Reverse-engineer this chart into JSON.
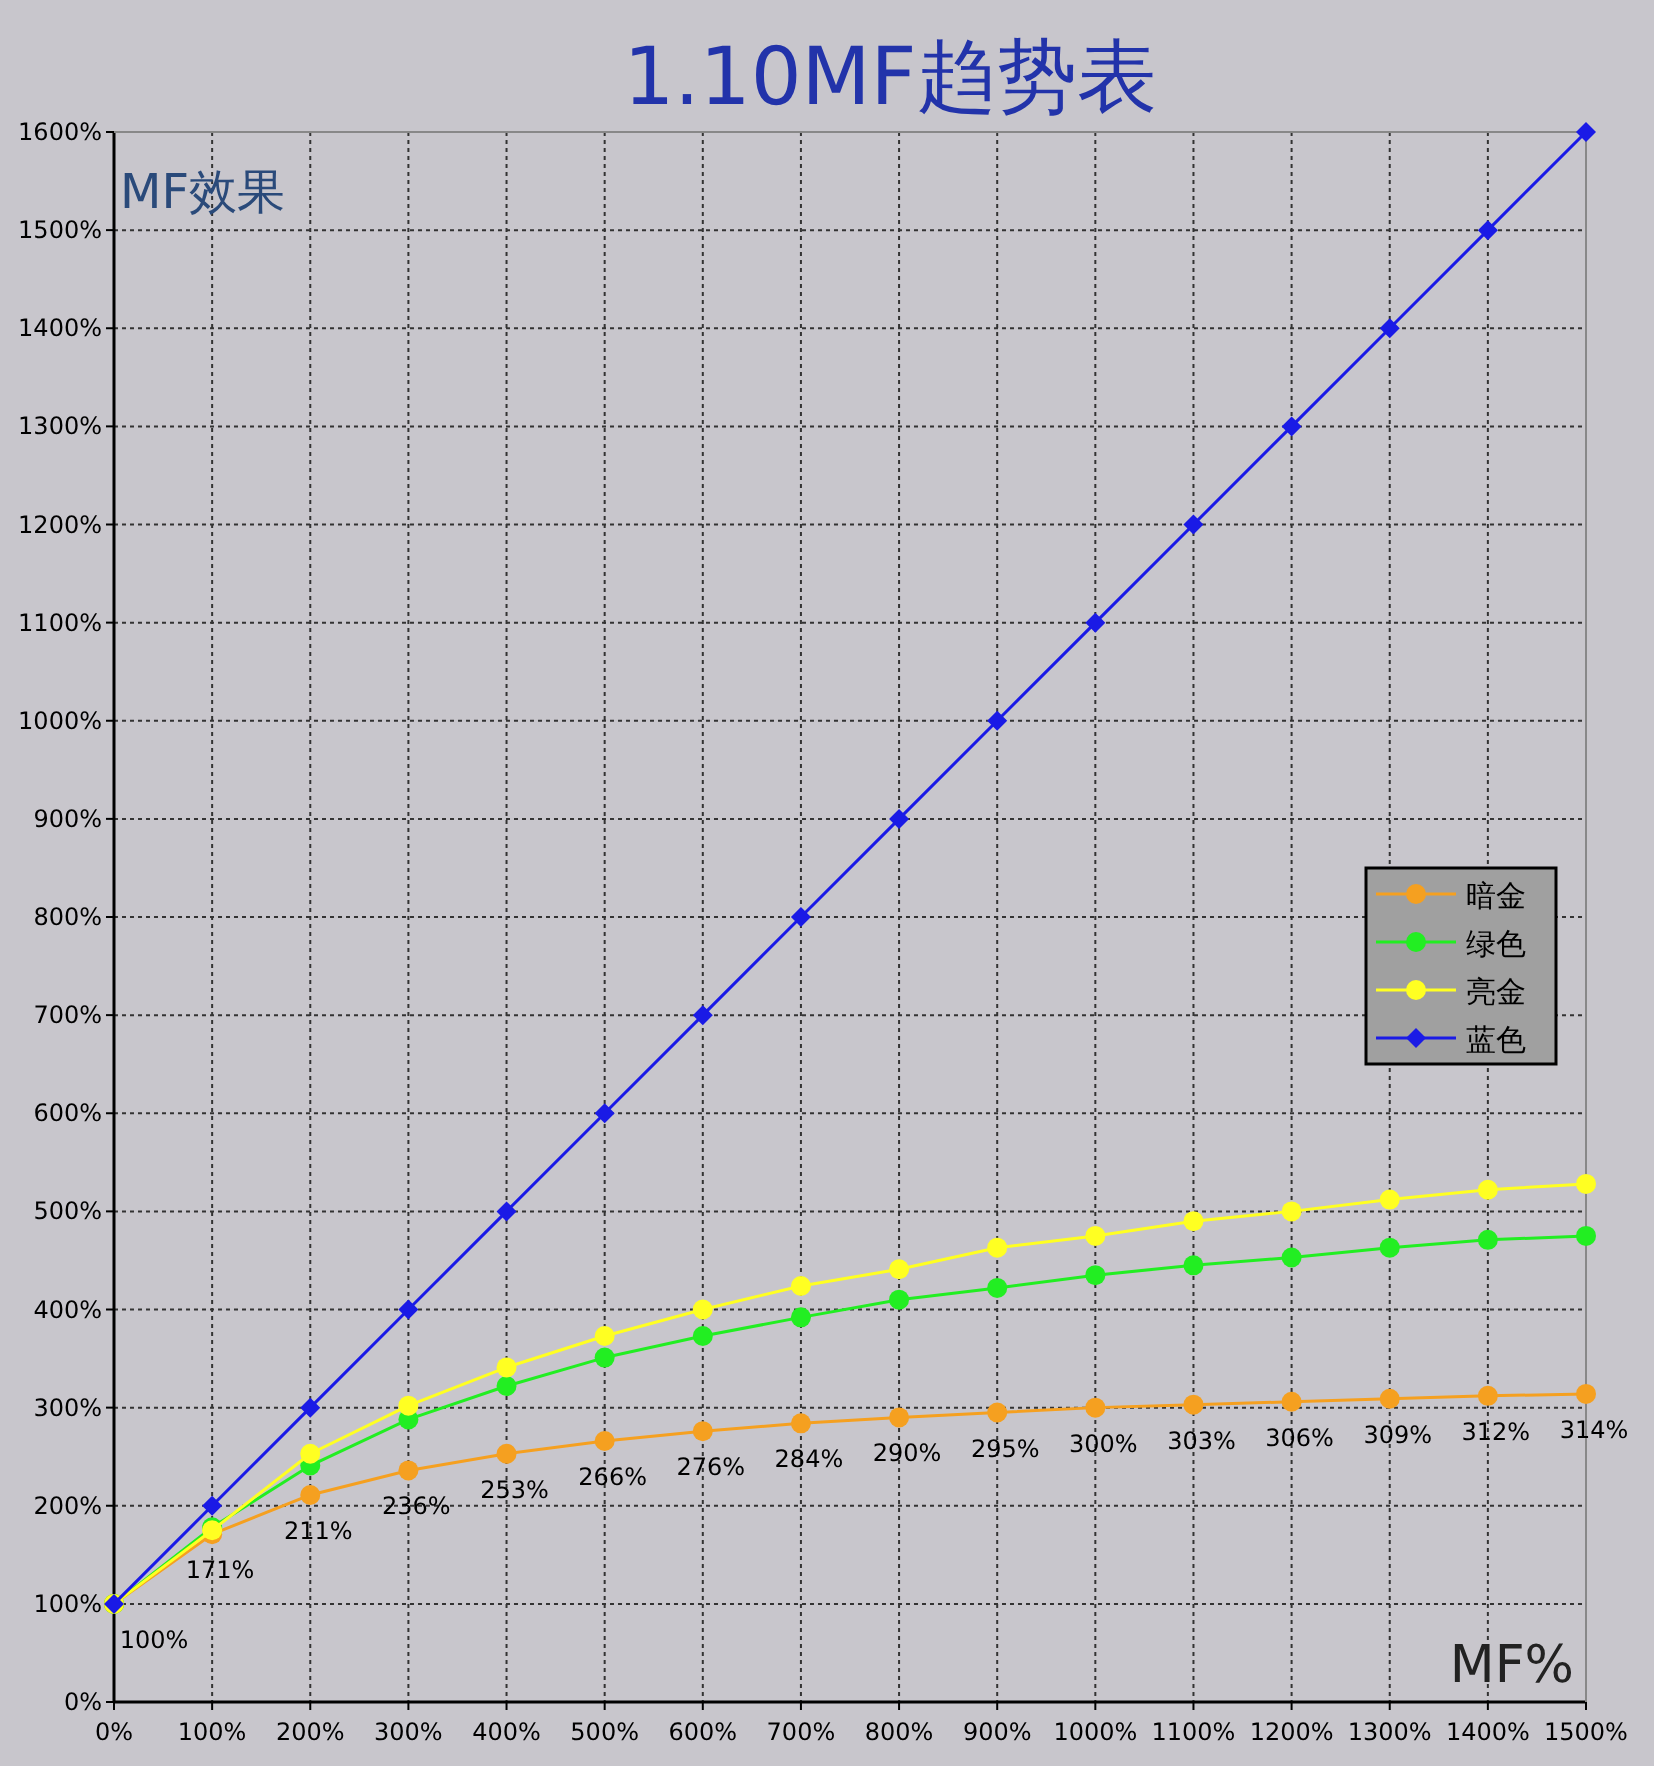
{
  "chart_data": {
    "type": "line",
    "title": "1.10MF趋势表",
    "xlabel": "MF%",
    "ylabel": "MF效果",
    "x": [
      0,
      100,
      200,
      300,
      400,
      500,
      600,
      700,
      800,
      900,
      1000,
      1100,
      1200,
      1300,
      1400,
      1500
    ],
    "xlim": [
      0,
      1500
    ],
    "xticks": [
      {
        "value": 0,
        "label": "0%"
      },
      {
        "value": 100,
        "label": "100%"
      },
      {
        "value": 200,
        "label": "200%"
      },
      {
        "value": 300,
        "label": "300%"
      },
      {
        "value": 400,
        "label": "400%"
      },
      {
        "value": 500,
        "label": "500%"
      },
      {
        "value": 600,
        "label": "600%"
      },
      {
        "value": 700,
        "label": "700%"
      },
      {
        "value": 800,
        "label": "800%"
      },
      {
        "value": 900,
        "label": "900%"
      },
      {
        "value": 1000,
        "label": "1000%"
      },
      {
        "value": 1100,
        "label": "1100%"
      },
      {
        "value": 1200,
        "label": "1200%"
      },
      {
        "value": 1300,
        "label": "1300%"
      },
      {
        "value": 1400,
        "label": "1400%"
      },
      {
        "value": 1500,
        "label": "1500%"
      }
    ],
    "ylim": [
      0,
      1600
    ],
    "yticks": [
      {
        "value": 0,
        "label": "0%"
      },
      {
        "value": 100,
        "label": "100%"
      },
      {
        "value": 200,
        "label": "200%"
      },
      {
        "value": 300,
        "label": "300%"
      },
      {
        "value": 400,
        "label": "400%"
      },
      {
        "value": 500,
        "label": "500%"
      },
      {
        "value": 600,
        "label": "600%"
      },
      {
        "value": 700,
        "label": "700%"
      },
      {
        "value": 800,
        "label": "800%"
      },
      {
        "value": 900,
        "label": "900%"
      },
      {
        "value": 1000,
        "label": "1000%"
      },
      {
        "value": 1100,
        "label": "1100%"
      },
      {
        "value": 1200,
        "label": "1200%"
      },
      {
        "value": 1300,
        "label": "1300%"
      },
      {
        "value": 1400,
        "label": "1400%"
      },
      {
        "value": 1500,
        "label": "1500%"
      },
      {
        "value": 1600,
        "label": "1600%"
      }
    ],
    "grid": true,
    "legend": "right",
    "series": [
      {
        "name": "暗金",
        "color": "#f5a020",
        "marker": "circle",
        "values": [
          100,
          171,
          211,
          236,
          253,
          266,
          276,
          284,
          290,
          295,
          300,
          303,
          306,
          309,
          312,
          314
        ],
        "value_labels": [
          "100%",
          "171%",
          "211%",
          "236%",
          "253%",
          "266%",
          "276%",
          "284%",
          "290%",
          "295%",
          "300%",
          "303%",
          "306%",
          "309%",
          "312%",
          "314%"
        ]
      },
      {
        "name": "绿色",
        "color": "#22ee22",
        "marker": "circle",
        "values": [
          100,
          178,
          241,
          288,
          322,
          351,
          373,
          392,
          410,
          422,
          435,
          445,
          453,
          463,
          471,
          475
        ]
      },
      {
        "name": "亮金",
        "color": "#ffff22",
        "marker": "circle",
        "values": [
          100,
          175,
          253,
          302,
          341,
          373,
          400,
          424,
          441,
          463,
          475,
          490,
          500,
          512,
          522,
          528
        ]
      },
      {
        "name": "蓝色",
        "color": "#1a1ae6",
        "marker": "diamond",
        "values": [
          100,
          200,
          300,
          400,
          500,
          600,
          700,
          800,
          900,
          1000,
          1100,
          1200,
          1300,
          1400,
          1500,
          1600
        ]
      }
    ]
  }
}
